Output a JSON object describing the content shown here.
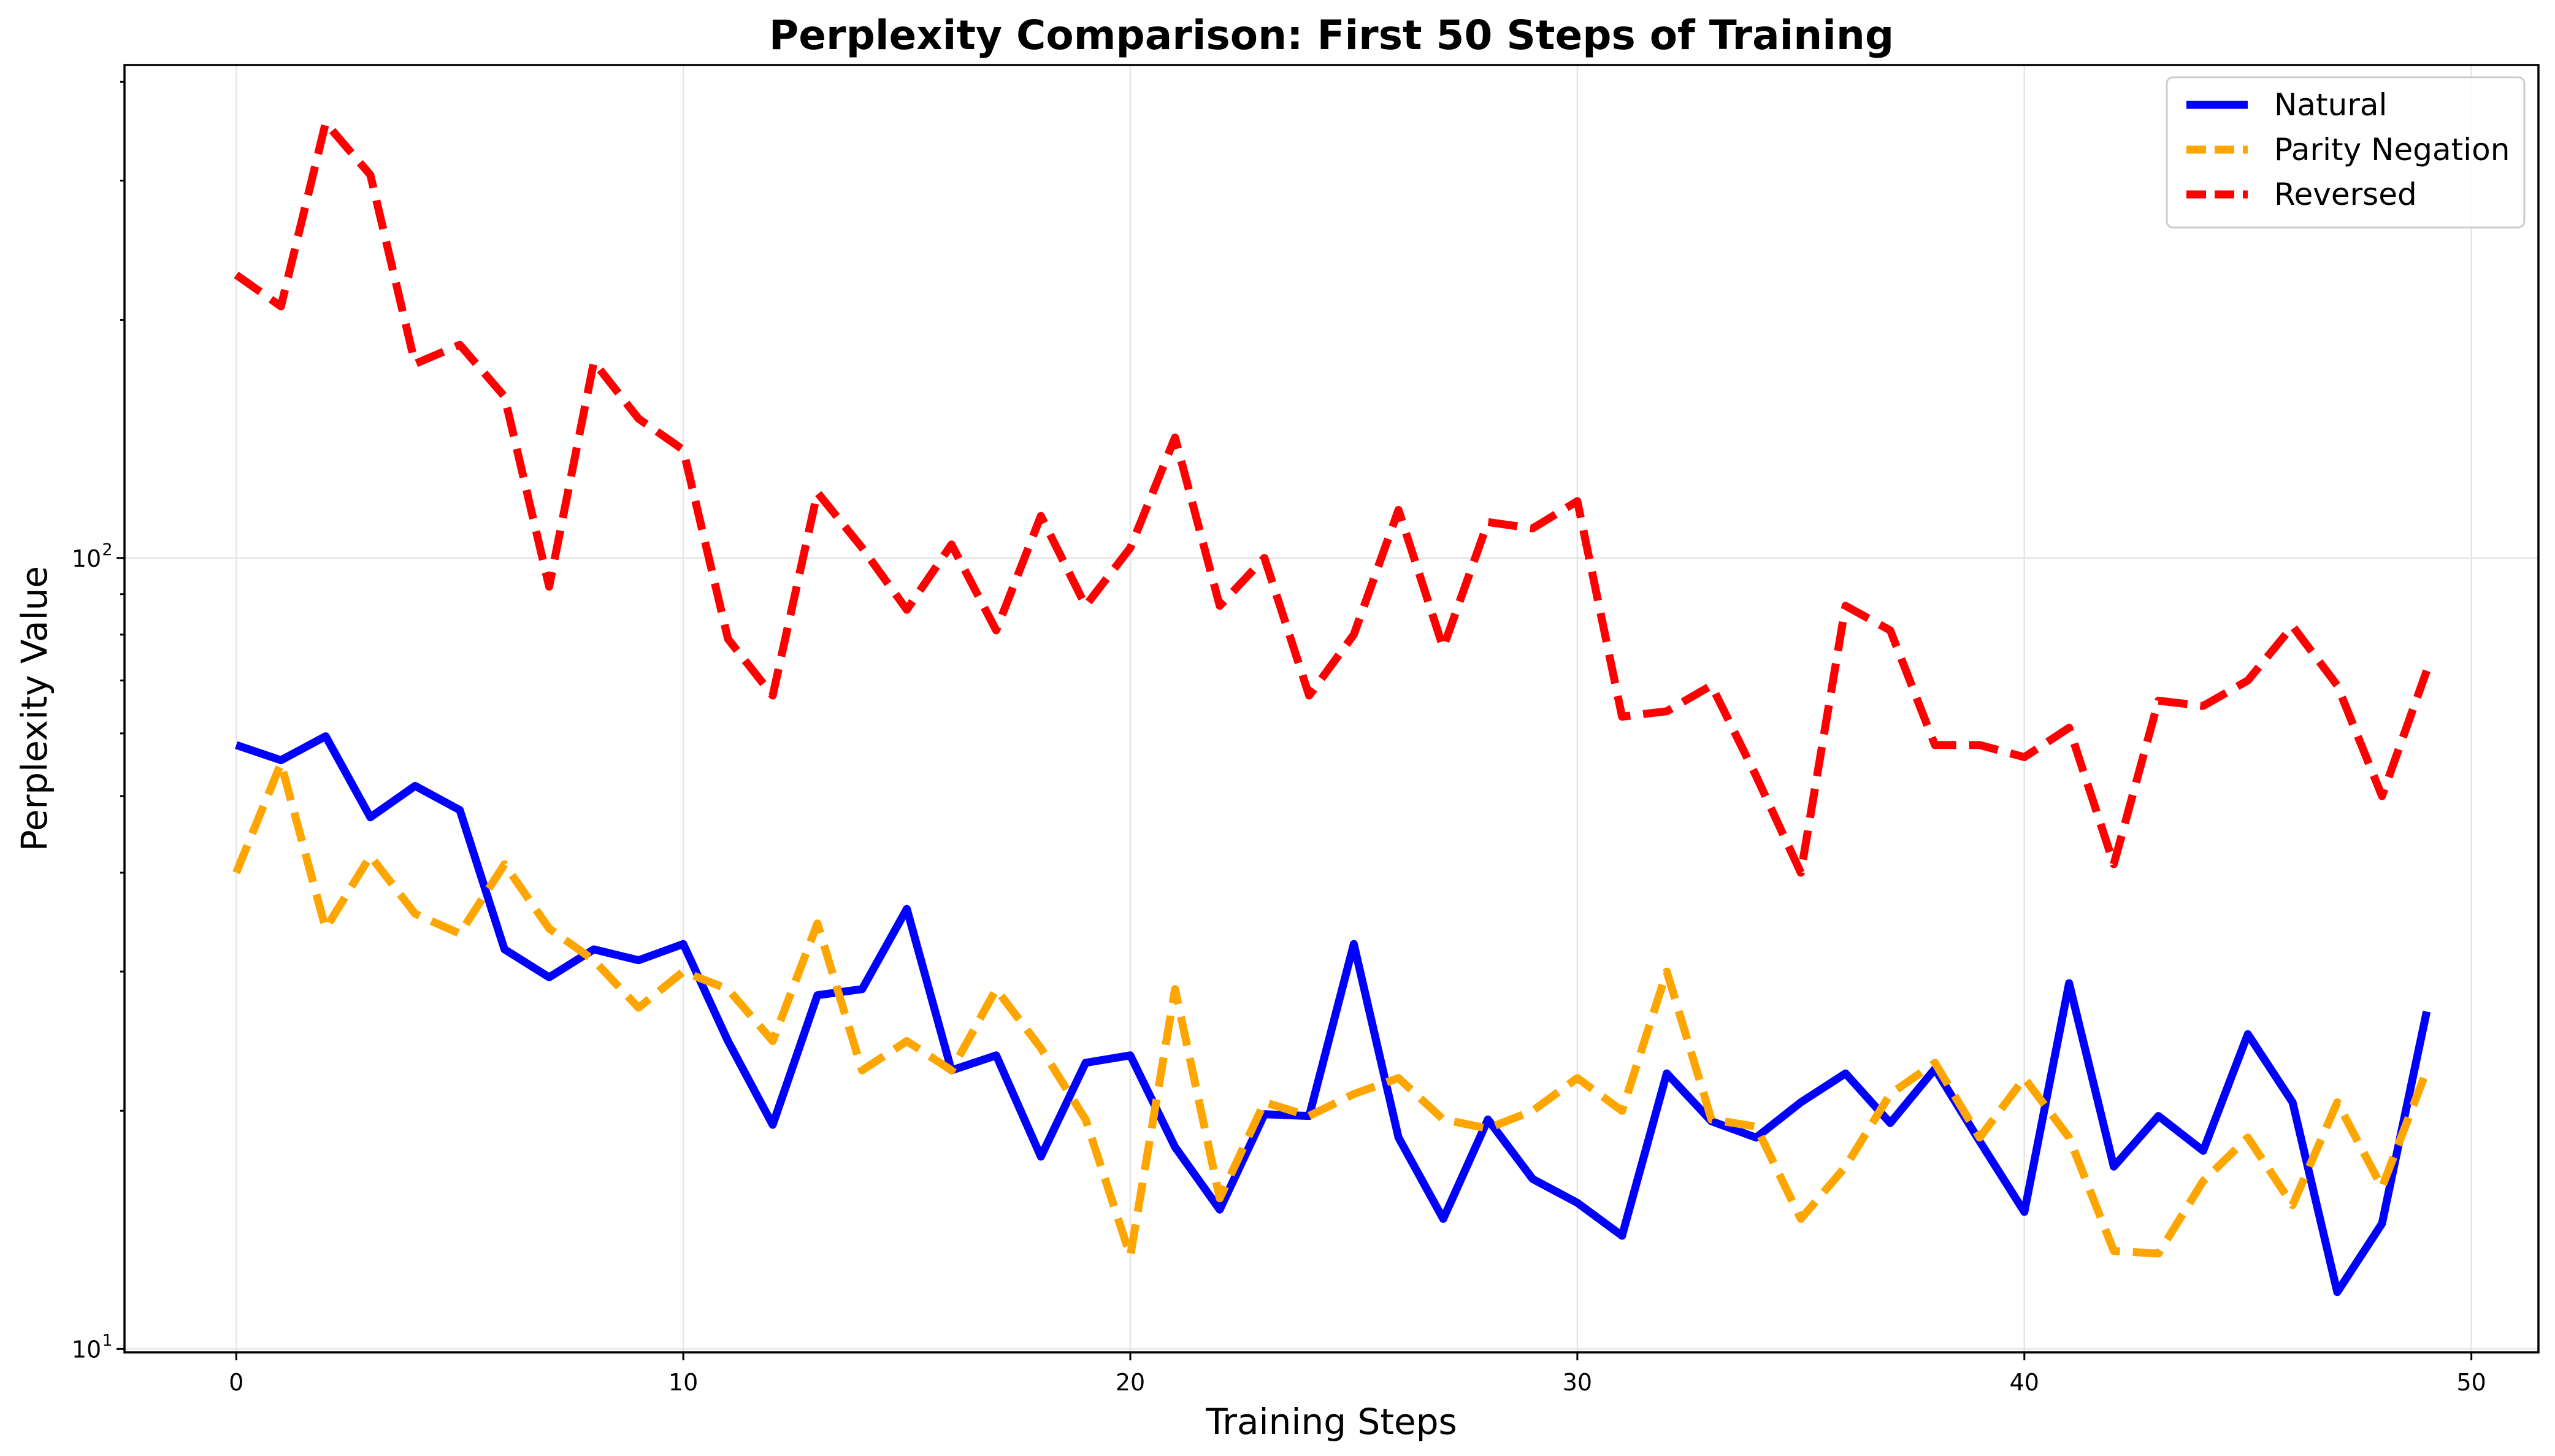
{
  "chart_data": {
    "type": "line",
    "title": "Perplexity Comparison: First 50 Steps of Training",
    "xlabel": "Training Steps",
    "ylabel": "Perplexity Value",
    "yscale": "log",
    "xlim": [
      -2.5,
      51.5
    ],
    "ylim": [
      9.9,
      420
    ],
    "xticks": [
      0,
      10,
      20,
      30,
      40,
      50
    ],
    "yticks": [
      {
        "value": 10,
        "base": "10",
        "exp": "1"
      },
      {
        "value": 100,
        "base": "10",
        "exp": "2"
      }
    ],
    "grid": true,
    "legend_position": "top-right",
    "x": [
      0,
      1,
      2,
      3,
      4,
      5,
      6,
      7,
      8,
      9,
      10,
      11,
      12,
      13,
      14,
      15,
      16,
      17,
      18,
      19,
      20,
      21,
      22,
      23,
      24,
      25,
      26,
      27,
      28,
      29,
      30,
      31,
      32,
      33,
      34,
      35,
      36,
      37,
      38,
      39,
      40,
      41,
      42,
      43,
      44,
      45,
      46,
      47,
      48,
      49
    ],
    "series": [
      {
        "name": "Natural",
        "color": "#0000ff",
        "dash": "solid",
        "values": [
          58,
          55.5,
          59.5,
          47,
          51.5,
          48,
          32,
          29.5,
          32,
          31,
          32.5,
          24.5,
          19.2,
          28,
          28.5,
          36,
          22.5,
          23.5,
          17.5,
          23,
          23.5,
          18,
          15,
          19.8,
          19.7,
          32.5,
          18.5,
          14.6,
          19.5,
          16.4,
          15.3,
          13.9,
          22.3,
          19.4,
          18.5,
          20.5,
          22.3,
          19.3,
          22.6,
          18.3,
          14.9,
          29,
          17,
          19.7,
          17.8,
          25,
          20.5,
          11.8,
          14.4,
          26.7
        ]
      },
      {
        "name": "Parity Negation",
        "color": "#ffa500",
        "dash": "dashed",
        "values": [
          40,
          55,
          34,
          42,
          35.5,
          33.5,
          41,
          34,
          31,
          27,
          30,
          28.5,
          24.5,
          34.5,
          22.5,
          24.5,
          22.5,
          28.5,
          24,
          19.5,
          13.1,
          28.5,
          15.5,
          20.5,
          19.7,
          21,
          22,
          19.5,
          19,
          20,
          22,
          20,
          30,
          19.5,
          19.1,
          14.6,
          17,
          21,
          23,
          18.5,
          22,
          18.5,
          13.3,
          13.2,
          16.3,
          18.5,
          15.2,
          20.5,
          16,
          22.5
        ]
      },
      {
        "name": "Reversed",
        "color": "#ff0000",
        "dash": "dashed",
        "values": [
          228,
          208,
          355,
          305,
          176,
          186,
          160,
          92,
          177,
          150,
          137,
          79,
          67,
          121,
          103,
          86,
          104,
          81,
          113,
          87,
          103,
          142,
          87,
          100,
          67,
          80,
          115,
          77,
          111,
          109,
          118,
          63,
          64,
          69,
          53,
          40,
          87,
          81,
          58,
          58,
          56,
          61,
          41,
          66,
          65,
          70,
          82,
          69,
          50,
          72
        ]
      }
    ]
  }
}
